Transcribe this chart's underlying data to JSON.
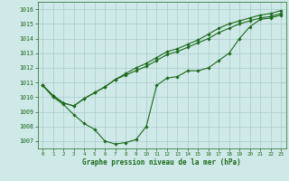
{
  "bg_color": "#cfe8e8",
  "grid_color": "#a8cccc",
  "line_color": "#1a6b1a",
  "xlabel": "Graphe pression niveau de la mer (hPa)",
  "ylim": [
    1006.5,
    1016.5
  ],
  "xlim": [
    -0.5,
    23.5
  ],
  "yticks": [
    1007,
    1008,
    1009,
    1010,
    1011,
    1012,
    1013,
    1014,
    1015,
    1016
  ],
  "xticks": [
    0,
    1,
    2,
    3,
    4,
    5,
    6,
    7,
    8,
    9,
    10,
    11,
    12,
    13,
    14,
    15,
    16,
    17,
    18,
    19,
    20,
    21,
    22,
    23
  ],
  "series1_x": [
    0,
    1,
    2,
    3,
    4,
    5,
    6,
    7,
    8,
    9,
    10,
    11,
    12,
    13,
    14,
    15,
    16,
    17,
    18,
    19,
    20,
    21,
    22,
    23
  ],
  "series1_y": [
    1010.8,
    1010.0,
    1009.5,
    1008.8,
    1008.2,
    1007.8,
    1007.0,
    1006.8,
    1006.9,
    1007.1,
    1008.0,
    1010.8,
    1011.3,
    1011.4,
    1011.8,
    1011.8,
    1012.0,
    1012.5,
    1013.0,
    1014.0,
    1014.8,
    1015.3,
    1015.4,
    1015.6
  ],
  "series2_x": [
    0,
    1,
    2,
    3,
    4,
    5,
    6,
    7,
    8,
    9,
    10,
    11,
    12,
    13,
    14,
    15,
    16,
    17,
    18,
    19,
    20,
    21,
    22,
    23
  ],
  "series2_y": [
    1010.8,
    1010.1,
    1009.6,
    1009.4,
    1009.9,
    1010.3,
    1010.7,
    1011.2,
    1011.5,
    1011.8,
    1012.1,
    1012.5,
    1012.9,
    1013.1,
    1013.4,
    1013.7,
    1014.0,
    1014.4,
    1014.7,
    1015.0,
    1015.2,
    1015.4,
    1015.5,
    1015.7
  ],
  "series3_x": [
    0,
    1,
    2,
    3,
    4,
    5,
    6,
    7,
    8,
    9,
    10,
    11,
    12,
    13,
    14,
    15,
    16,
    17,
    18,
    19,
    20,
    21,
    22,
    23
  ],
  "series3_y": [
    1010.8,
    1010.1,
    1009.6,
    1009.4,
    1009.9,
    1010.3,
    1010.7,
    1011.2,
    1011.6,
    1012.0,
    1012.3,
    1012.7,
    1013.1,
    1013.3,
    1013.6,
    1013.9,
    1014.3,
    1014.7,
    1015.0,
    1015.2,
    1015.4,
    1015.6,
    1015.7,
    1015.9
  ]
}
